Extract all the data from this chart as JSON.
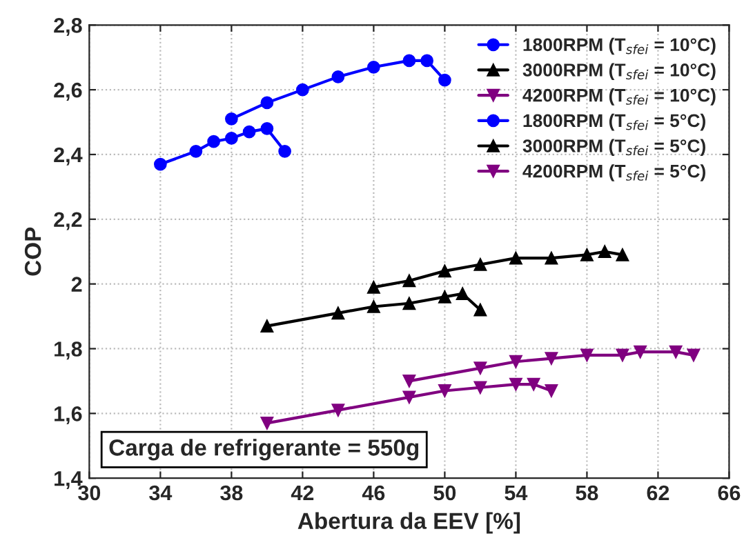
{
  "chart_data": {
    "type": "line",
    "xlabel": "Abertura da EEV [%]",
    "ylabel": "COP",
    "series": [
      {
        "name": "1800RPM (T$_{sfei}$ = 10°C)",
        "color": "#0000ff",
        "marker": "circle",
        "x": [
          38,
          40,
          42,
          44,
          46,
          48,
          49,
          50
        ],
        "values": [
          2.51,
          2.56,
          2.6,
          2.64,
          2.67,
          2.69,
          2.69,
          2.63
        ]
      },
      {
        "name": "3000RPM (T$_{sfei}$ = 10°C)",
        "color": "#000000",
        "marker": "triangle",
        "x": [
          46,
          48,
          50,
          52,
          54,
          56,
          58,
          59,
          60
        ],
        "values": [
          1.99,
          2.01,
          2.04,
          2.06,
          2.08,
          2.08,
          2.09,
          2.1,
          2.09
        ]
      },
      {
        "name": "4200RPM (T$_{sfei}$ = 10°C)",
        "color": "#800080",
        "marker": "triangle_down",
        "x": [
          48,
          52,
          54,
          56,
          58,
          60,
          61,
          63,
          64
        ],
        "values": [
          1.7,
          1.74,
          1.76,
          1.77,
          1.78,
          1.78,
          1.79,
          1.79,
          1.78
        ]
      },
      {
        "name": "1800RPM (T$_{sfei}$ = 5°C)",
        "color": "#0000ff",
        "marker": "circle",
        "x": [
          34,
          36,
          37,
          38,
          39,
          40,
          41
        ],
        "values": [
          2.37,
          2.41,
          2.44,
          2.45,
          2.47,
          2.48,
          2.41
        ]
      },
      {
        "name": "3000RPM (T$_{sfei}$ = 5°C)",
        "color": "#000000",
        "marker": "triangle",
        "x": [
          40,
          44,
          46,
          48,
          50,
          51,
          52
        ],
        "values": [
          1.87,
          1.91,
          1.93,
          1.94,
          1.96,
          1.97,
          1.92
        ]
      },
      {
        "name": "4200RPM (T$_{sfei}$ = 5°C)",
        "color": "#800080",
        "marker": "triangle_down",
        "x": [
          40,
          44,
          48,
          50,
          52,
          54,
          55,
          56
        ],
        "values": [
          1.57,
          1.61,
          1.65,
          1.67,
          1.68,
          1.69,
          1.69,
          1.67
        ]
      }
    ],
    "xlim": [
      30,
      66
    ],
    "xticks": [
      30,
      34,
      38,
      42,
      46,
      50,
      54,
      58,
      62,
      66
    ],
    "ylim": [
      1.4,
      2.8
    ],
    "yticks": [
      {
        "value": 1.4,
        "label": "1,4"
      },
      {
        "value": 1.6,
        "label": "1,6"
      },
      {
        "value": 1.8,
        "label": "1,8"
      },
      {
        "value": 2.0,
        "label": "2"
      },
      {
        "value": 2.2,
        "label": "2,2"
      },
      {
        "value": 2.4,
        "label": "2,4"
      },
      {
        "value": 2.6,
        "label": "2,6"
      },
      {
        "value": 2.8,
        "label": "2,8"
      }
    ],
    "grid": true,
    "legend": "top right",
    "line_style": "solid",
    "annotations": [
      "Carga de refrigerante = 550g"
    ]
  }
}
